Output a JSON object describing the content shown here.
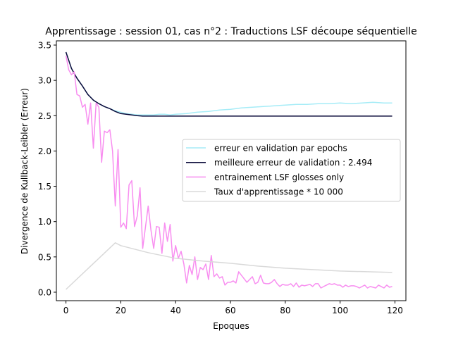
{
  "chart_data": {
    "type": "line",
    "title": "Apprentissage : session 01, cas n°2 : Traductions LSF découpe séquentielle",
    "xlabel": "Epoques",
    "ylabel": "Divergence de Kullback-Leibler (Erreur)",
    "xlim": [
      -3.5,
      124.0
    ],
    "ylim": [
      -0.12,
      3.56
    ],
    "xticks": [
      0,
      20,
      40,
      60,
      80,
      100,
      120
    ],
    "yticks": [
      0.0,
      0.5,
      1.0,
      1.5,
      2.0,
      2.5,
      3.0,
      3.5
    ],
    "xtick_labels": [
      "0",
      "20",
      "40",
      "60",
      "80",
      "100",
      "120"
    ],
    "ytick_labels": [
      "0.0",
      "0.5",
      "1.0",
      "1.5",
      "2.0",
      "2.5",
      "3.0",
      "3.5"
    ],
    "grid": false,
    "legend_position": "center-right",
    "series": [
      {
        "name": "erreur en validation par epochs",
        "color": "#a6ecf7",
        "x": [
          0,
          2,
          4,
          6,
          8,
          10,
          12,
          14,
          16,
          18,
          20,
          22,
          24,
          26,
          28,
          30,
          32,
          34,
          36,
          38,
          40,
          44,
          48,
          52,
          56,
          60,
          64,
          68,
          72,
          76,
          80,
          84,
          88,
          92,
          96,
          100,
          104,
          108,
          112,
          116,
          119
        ],
        "y": [
          3.4,
          3.17,
          3.03,
          2.92,
          2.8,
          2.72,
          2.67,
          2.63,
          2.6,
          2.57,
          2.55,
          2.53,
          2.52,
          2.51,
          2.51,
          2.51,
          2.51,
          2.52,
          2.52,
          2.51,
          2.52,
          2.53,
          2.55,
          2.56,
          2.58,
          2.59,
          2.61,
          2.62,
          2.63,
          2.64,
          2.65,
          2.66,
          2.66,
          2.67,
          2.67,
          2.68,
          2.67,
          2.68,
          2.69,
          2.68,
          2.68
        ]
      },
      {
        "name": "meilleure erreur de validation : 2.494",
        "color": "#0a0a3a",
        "x": [
          0,
          2,
          4,
          6,
          8,
          10,
          12,
          14,
          16,
          18,
          20,
          22,
          24,
          26,
          28,
          30,
          40,
          60,
          80,
          100,
          119
        ],
        "y": [
          3.4,
          3.17,
          3.03,
          2.92,
          2.8,
          2.72,
          2.67,
          2.63,
          2.6,
          2.56,
          2.53,
          2.52,
          2.51,
          2.5,
          2.494,
          2.494,
          2.494,
          2.494,
          2.494,
          2.494,
          2.494
        ]
      },
      {
        "name": "entrainement LSF glosses only",
        "color": "#f88ef0",
        "x": [
          0,
          1,
          2,
          3,
          4,
          5,
          6,
          7,
          8,
          9,
          10,
          11,
          12,
          13,
          14,
          15,
          16,
          17,
          18,
          19,
          20,
          21,
          22,
          23,
          24,
          25,
          26,
          27,
          28,
          29,
          30,
          31,
          32,
          33,
          34,
          35,
          36,
          37,
          38,
          39,
          40,
          41,
          42,
          43,
          44,
          45,
          46,
          47,
          48,
          49,
          50,
          51,
          52,
          53,
          54,
          55,
          56,
          57,
          58,
          59,
          60,
          61,
          62,
          63,
          64,
          65,
          66,
          67,
          68,
          69,
          70,
          71,
          72,
          73,
          74,
          75,
          76,
          77,
          78,
          79,
          80,
          81,
          82,
          83,
          84,
          85,
          86,
          87,
          88,
          89,
          90,
          91,
          92,
          93,
          94,
          95,
          96,
          97,
          98,
          99,
          100,
          101,
          102,
          103,
          104,
          105,
          106,
          107,
          108,
          109,
          110,
          111,
          112,
          113,
          114,
          115,
          116,
          117,
          118,
          119
        ],
        "y": [
          3.35,
          3.15,
          3.08,
          3.12,
          2.8,
          2.78,
          2.62,
          2.66,
          2.38,
          2.68,
          2.04,
          2.68,
          2.62,
          1.84,
          2.28,
          2.26,
          2.3,
          2.0,
          1.22,
          2.02,
          0.92,
          0.98,
          0.9,
          1.52,
          1.58,
          0.93,
          1.08,
          1.48,
          0.62,
          0.92,
          1.22,
          0.88,
          0.62,
          0.93,
          0.92,
          0.55,
          0.98,
          0.72,
          0.96,
          0.44,
          0.66,
          0.48,
          0.58,
          0.4,
          0.13,
          0.38,
          0.25,
          0.5,
          0.18,
          0.35,
          0.32,
          0.4,
          0.18,
          0.52,
          0.22,
          0.26,
          0.2,
          0.22,
          0.1,
          0.14,
          0.14,
          0.16,
          0.13,
          0.29,
          0.24,
          0.19,
          0.14,
          0.18,
          0.22,
          0.12,
          0.14,
          0.24,
          0.13,
          0.12,
          0.12,
          0.14,
          0.18,
          0.12,
          0.08,
          0.11,
          0.1,
          0.1,
          0.12,
          0.08,
          0.13,
          0.07,
          0.1,
          0.09,
          0.1,
          0.11,
          0.08,
          0.12,
          0.12,
          0.06,
          0.08,
          0.1,
          0.12,
          0.11,
          0.12,
          0.1,
          0.1,
          0.07,
          0.1,
          0.08,
          0.09,
          0.09,
          0.08,
          0.06,
          0.08,
          0.1,
          0.06,
          0.08,
          0.07,
          0.06,
          0.1,
          0.08,
          0.06,
          0.1,
          0.07,
          0.08
        ]
      },
      {
        "name": "Taux d'apprentissage * 10 000",
        "color": "#d9d9d9",
        "x": [
          0,
          18,
          20,
          30,
          40,
          50,
          60,
          70,
          80,
          90,
          100,
          110,
          119
        ],
        "y": [
          0.04,
          0.7,
          0.66,
          0.56,
          0.48,
          0.44,
          0.41,
          0.37,
          0.34,
          0.32,
          0.3,
          0.29,
          0.28
        ]
      }
    ]
  }
}
